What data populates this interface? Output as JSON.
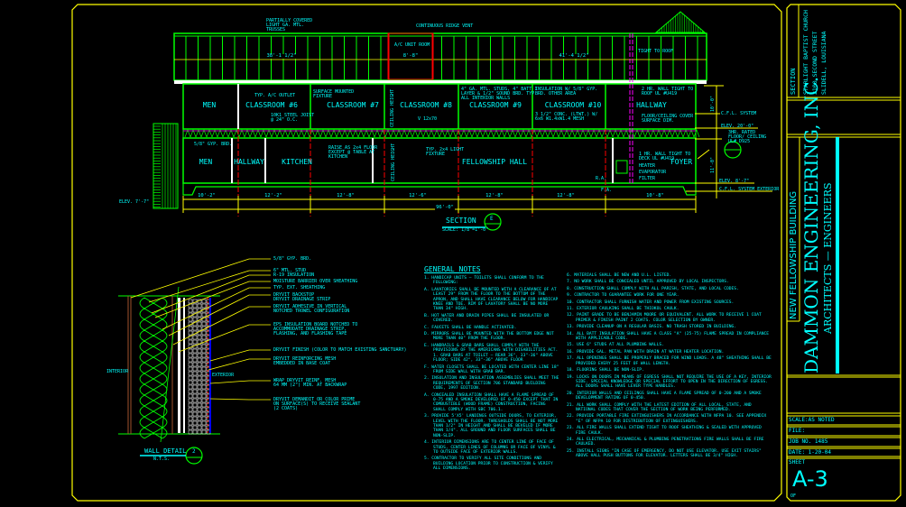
{
  "colors": {
    "background": "#000000",
    "border": "#ffff00",
    "structure": "#00ff00",
    "text": "#00ffff",
    "gridline": "#ff0000",
    "fire_wall": "#ff00ff",
    "wall": "#ffffff",
    "detail_blue": "#0000ff"
  },
  "section": {
    "title": "SECTION",
    "scale": "SCALE: 1/8\"=1'-0\"",
    "marker": "E",
    "roof_labels": {
      "trusses": "PARTIALLY COVERED LIGHT GA. MTL. TRUSSES",
      "ridge_vent": "CONTINUOUS RIDGE VENT",
      "ac_room": "A/C UNIT ROOM",
      "ac_dim": "8'-8\"",
      "left_dim": "38'-1 1/2\"",
      "right_dim": "41'-4 1/2\"",
      "tight_to_roof": "TIGHT TO ROOF"
    },
    "upper_rooms": [
      "MEN",
      "CLASSROOM #6",
      "CLASSROOM #7",
      "CLASSROOM #8",
      "CLASSROOM #9",
      "CLASSROOM #10",
      "HALLWAY"
    ],
    "lower_rooms": [
      "MEN",
      "HALLWAY",
      "KITCHEN",
      "FELLOWSHIP HALL",
      "FOYER"
    ],
    "callouts": {
      "outlet": "TYP. A/C OUTLET",
      "fixture": "SURFACE MOUNTED FIXTURE",
      "studs": "4\" GA. MTL. STUDS, 4\" BATT 1 LAYER & 1/2\" SOUND BRD. TYP. ALL INTERIOR WALLS",
      "insulation": "INSULATION W/ 5/8\" GYP. BRD. OTHER AREA",
      "two_hr_wall": "2 HR. WALL TIGHT TO ROOF UL #U419",
      "steel_joist": "10K1 STEEL JOIST @ 24\" O.C.",
      "ceiling_height_upper": "CEILING HEIGHT",
      "v_label": "V 12x70",
      "conc": "3 1/2\" CONC. (LTWT.) W/ 6x6 W1.4xW1.4 MESH",
      "floor_ceiling": "FLOOR/CEILING COVER SURFACE DIM.",
      "gyp_brd": "5/8\" GYP. BRD.",
      "raise_floor": "RAISE AS 2x4 FLOOR EXCEPT @ TABLE AT KITCHEN",
      "ceiling_height_lower": "CEILING HEIGHT",
      "light_fixture": "TYP. 2x4 LIGHT FIXTURE",
      "one_hr_wall": "1 HR. WALL TIGHT TO DECK UL #U419",
      "heater": "HEATER",
      "evaporator": "EVAPORATOR",
      "filter": "FILTER",
      "ra": "R.A.",
      "fa": "F.A.",
      "elev_left": "ELEV. 7'-7\"",
      "cfl_system": "C.F.L. SYSTEM",
      "elev_20": "ELEV. 20'-0\"",
      "rated_floor": "3HR. RATED FLOOR/ CEILING UL# D925",
      "elev_8": "ELEV. 8'-7\"",
      "cfl_exterior": "C.F.L. SYSTEM EXTERIOR",
      "height_upper": "10'-0\"",
      "height_lower": "11'-0\""
    },
    "bay_dims": [
      "10'-2\"",
      "12'-2\"",
      "12'-8\"",
      "12'-6\"",
      "12'-8\"",
      "12'-8\"",
      "10'-8\""
    ],
    "overall_dim": "96'-0\""
  },
  "wall_detail": {
    "title": "WALL DETAIL",
    "scale": "N.T.S.",
    "marker": "2",
    "interior": "INTERIOR",
    "exterior": "EXTERIOR",
    "labels": [
      "5/8\" GYP. BRD.",
      "6\" MTL. STUD",
      "R-19 INSULATION",
      "MOISTURE BARRIER OVER SHEATHING",
      "TYP. EXT. SHEATHING",
      "DRYVIT BACKSTOP|DRYVIT DRAINAGE STRIP",
      "DRYVIT ADHESIVE IN VERTICAL|NOTCHED TROWEL CONFIGURATION",
      "EPS INSULATION BOARD NOTCHED TO|ACCOMMODATE DRAINAGE STRIP,|FLASHING, AND FLASHING TAPE",
      "DRYVIT FINISH (COLOR TO MATCH EXISTING SANCTUARY)",
      "DRYVIT REINFORCING MESH|EMBEDDED IN BASE COAT",
      "WRAP DRYVIT REINF. MESH|64 MM (2\") MIN. AT BACKWRAP",
      "DRYVIT DEMANDIT OR COLOR PRIME|ON SURFACE(S) TO RECEIVE SEALANT|(2 COATS)"
    ]
  },
  "general_notes": {
    "title": "GENERAL NOTES",
    "left": [
      "1. HANDICAP UNITS — TOILETS SHALL CONFORM TO THE FOLLOWING:",
      "A. LAVATORIES SHALL BE MOUNTED WITH A CLEARANCE OF AT LEAST 29\" FROM THE FLOOR TO THE BOTTOM OF THE APRON, AND SHALL HAVE CLEARANCE BELOW FOR HANDICAP KNEE AND TOE. RIM OF LAVATORY SHALL BE NO MORE THAN 34\" HIGH.",
      "B. HOT WATER AND DRAIN PIPES SHALL BE INSULATED OR COVERED.",
      "C. FAUCETS SHALL BE HANDLE ACTIVATED.",
      "D. MIRRORS SHALL BE MOUNTED WITH THE BOTTOM EDGE NOT MORE THAN 40\" FROM THE FLOOR.",
      "E. HANDRAILS & GRAB BARS SHALL COMPLY WITH THE PROVISIONS OF THE AMERICANS WITH DISABILITIES ACT. 1. GRAB BARS AT TOILET — REAR 36\", 33\"-36\" ABOVE FLOOR; SIDE 42\", 33\"-36\" ABOVE FLOOR",
      "F. WATER CLOSETS SHALL BE LOCATED WITH CENTER LINE 18\" FROM SIDE WALL WITH GRAB BAR.",
      "2. INSULATION AND INSULATION ASSEMBLIES SHALL MEET THE REQUIREMENTS OF SECTION 706 STANDARD BUILDING CODE, 1997 EDITION.",
      "A. CONCEALED INSULATION SHALL HAVE A FLAME SPREAD OF 0-75 AND A SMOKE DEVELOPED OF 0-450 EXCEPT THAT IN COMBUSTIBLE (WOOD FRAME) CONSTRUCTION, FACING SHALL COMPLY WITH SBC 706.1.",
      "3. PROVIDE 5'X5' LANDINGS OUTSIDE DOORS, TO EXTERIOR, LEVEL WITH THE FLOOR. THRESHOLDS SHALL BE NOT MORE THAN 1/2\" IN HEIGHT AND SHALL BE BEVELED IF MORE THAN 1/4\". ALL GROUND AND FLOOR SURFACES SHALL BE NON-SLIP.",
      "4. INTERIOR DIMENSIONS ARE TO CENTER LINE OF FACE OF STUDS, CENTER LINES OF COLUMNS OR FACE OF VINYL & TO OUTSIDE FACE OF EXTERIOR WALLS.",
      "5. CONTRACTOR TO VERIFY ALL SITE CONDITIONS AND BUILDING LOCATION PRIOR TO CONSTRUCTION & VERIFY ALL DIMENSIONS."
    ],
    "right": [
      "6. MATERIALS SHALL BE NEW AND U.L. LISTED.",
      "7. NO WORK SHALL BE CONCEALED UNTIL APPROVED BY LOCAL INSPECTORS.",
      "8. CONSTRUCTION SHALL COMPLY WITH ALL PARISH, STATE, AND LOCAL CODES.",
      "9. CONTRACTOR TO GUARANTEE WORK FOR ONE YEAR.",
      "10. CONTRACTOR SHALL FURNISH WATER AND POWER FROM EXISTING SOURCES.",
      "11. EXTERIOR CAULKING SHALL BE THIOKOL CAULK.",
      "12. PAINT GRADE TO BE BENJAMIN MOORE OR EQUIVALENT. ALL WORK TO RECEIVE 1 COAT PRIMER & FINISH PAINT 2 COATS. COLOR SELECTION BY OWNER.",
      "13. PROVIDE CLEANUP ON A REGULAR BASIS. NO TRASH STORED IN BUILDING.",
      "14. ALL BATT INSULATION SHALL HAVE A CLASS \"A\" (25-75) FLAME SPREAD IN COMPLIANCE WITH APPLICABLE CODE.",
      "15. USE 6\" STUDS AT ALL PLUMBING WALLS.",
      "16. PROVIDE GAL. METAL PAN WITH DRAIN AT WATER HEATER LOCATION.",
      "17. ALL OPENINGS SHALL BE PROPERLY BRACED FOR WIND LOADS. A 48\" SHEATHING SHALL BE PROVIDED EVERY 25 FEET OF WALL LENGTH.",
      "18. FLOORING SHALL BE NON-SLIP.",
      "19. LOCKS ON DOORS IN MEANS OF EGRESS SHALL NOT REQUIRE THE USE OF A KEY, INTERIOR SIDE. SPECIAL KNOWLEDGE OR SPECIAL EFFORT TO OPEN IN THE DIRECTION OF EGRESS. ALL DOORS SHALL HAVE LEVER TYPE HANDLES.",
      "20. INTERIOR WALLS AND CEILINGS SHALL HAVE A FLAME SPREAD OF 0-200 AND A SMOKE DEVELOPMENT RATING OF 0-450.",
      "21. ALL WORK SHALL COMPLY WITH THE LATEST EDITION OF ALL LOCAL, STATE, AND NATIONAL CODES THAT COVER THE SECTION OF WORK BEING PERFORMED.",
      "22. PROVIDE PORTABLE FIRE EXTINGUISHERS IN ACCORDANCE WITH NFPA 10. SEE APPENDIX \"E\" OF NFPA 10 FOR DISTRIBUTION OF EXTINGUISHERS.",
      "23. ALL FIRE WALLS SHALL EXTEND TIGHT TO ROOF SHEATHING & SEALED WITH APPROVED FIRE CAULK.",
      "24. ALL ELECTRICAL, MECHANICAL & PLUMBING PENETRATIONS FIRE WALLS SHALL BE FIRE CAULKED.",
      "25. INSTALL SIGNS \"IN CASE OF EMERGENCY, DO NOT USE ELEVATOR. USE EXIT STAIRS\" ABOVE HALL PUSH BUTTONS FOR ELEVATOR. LETTERS SHALL BE 3/4\" HIGH."
    ]
  },
  "title_block": {
    "sheet_type": "SECTION",
    "church": "STARLIGHT BAPTIST CHURCH",
    "address": "2100 SECOND STREET",
    "city": "SLIDELL, LOUISIANA",
    "project": "NEW FELLOWSHIP BUILDING",
    "firm_name": "DAMMON ENGINEERING, INC.",
    "firm_sub": "ARCHITECTS — ENGINEERS",
    "scale": "SCALE:AS NOTED",
    "file": "FILE:",
    "job_no": "JOB NO. 1485",
    "date": "DATE: 1-20-04",
    "sheet_label": "SHEET",
    "sheet_no": "A-3",
    "of": "OF"
  }
}
